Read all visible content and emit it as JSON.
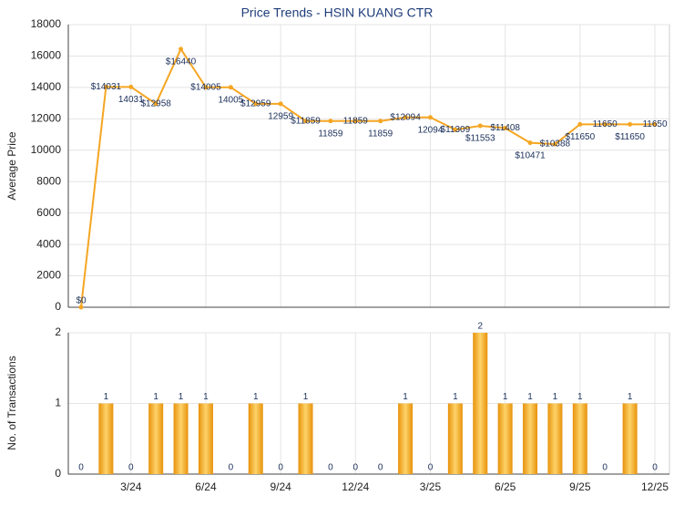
{
  "chart_data": [
    {
      "type": "line",
      "title": "Price Trends - HSIN KUANG CTR",
      "y_label": "Average Price",
      "categories": [
        null,
        null,
        "3/24",
        null,
        null,
        "6/24",
        null,
        null,
        "9/24",
        null,
        null,
        "12/24",
        null,
        null,
        "3/25",
        null,
        null,
        "6/25",
        null,
        null,
        "9/25",
        null,
        null,
        "12/25"
      ],
      "series": [
        {
          "name": "Average Price",
          "color": "#f5a623",
          "values": [
            0,
            14031,
            14031,
            12958,
            16440,
            14005,
            14005,
            12959,
            12959,
            11859,
            11859,
            11859,
            11859,
            12094,
            12094,
            11309,
            11553,
            11408,
            10471,
            10388,
            11650,
            11650,
            11650,
            11650
          ],
          "value_labels": [
            "$0",
            "$14031",
            "14031",
            "$12958",
            "$16440",
            "$14005",
            "14005",
            "$12959",
            "12959",
            "$11859",
            "11859",
            "11859",
            "11859",
            "$12094",
            "12094",
            "$11309",
            "$11553",
            "$11408",
            "$10471",
            "$10388",
            "$11650",
            "11650",
            "$11650",
            "11650"
          ]
        }
      ],
      "ylim": [
        0,
        18000
      ],
      "yticks": [
        0,
        2000,
        4000,
        6000,
        8000,
        10000,
        12000,
        14000,
        16000,
        18000
      ],
      "grid": true
    },
    {
      "type": "bar",
      "y_label": "No. of Transactions",
      "categories": [
        null,
        null,
        "3/24",
        null,
        null,
        "6/24",
        null,
        null,
        "9/24",
        null,
        null,
        "12/24",
        null,
        null,
        "3/25",
        null,
        null,
        "6/25",
        null,
        null,
        "9/25",
        null,
        null,
        "12/25"
      ],
      "series": [
        {
          "name": "No. of Transactions",
          "color": "#f0a30a",
          "values": [
            0,
            1,
            0,
            1,
            1,
            1,
            0,
            1,
            0,
            1,
            0,
            0,
            0,
            1,
            0,
            1,
            2,
            1,
            1,
            1,
            1,
            0,
            1,
            0
          ]
        }
      ],
      "ylim": [
        0,
        2
      ],
      "yticks": [
        0,
        1,
        2
      ],
      "grid": true
    }
  ]
}
